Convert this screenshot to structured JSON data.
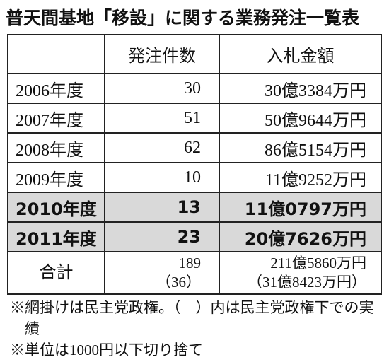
{
  "title": "普天間基地「移設」に関する業務発注一覧表",
  "table": {
    "header": [
      "",
      "発注件数",
      "入札金額"
    ],
    "rows": [
      {
        "cells": [
          "2006年度",
          "30",
          "30億3384万円"
        ],
        "shaded": false
      },
      {
        "cells": [
          "2007年度",
          "51",
          "50億9644万円"
        ],
        "shaded": false
      },
      {
        "cells": [
          "2008年度",
          "62",
          "86億5154万円"
        ],
        "shaded": false
      },
      {
        "cells": [
          "2009年度",
          "10",
          "11億9252万円"
        ],
        "shaded": false
      },
      {
        "cells": [
          "2010年度",
          "13",
          "11億0797万円"
        ],
        "shaded": true
      },
      {
        "cells": [
          "2011年度",
          "23",
          "20億7626万円"
        ],
        "shaded": true
      }
    ],
    "total": {
      "label": "合計",
      "count": "189",
      "count_sub": "（36）",
      "amount": "211億5860万円",
      "amount_sub": "（31億8423万円）"
    }
  },
  "notes": [
    "※網掛けは民主党政権。（　）内は民主党政権下での実績",
    "※単位は1000円以下切り捨て"
  ]
}
